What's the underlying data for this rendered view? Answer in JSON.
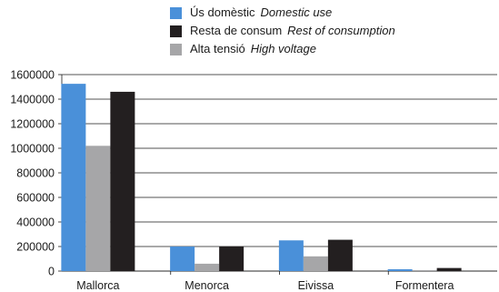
{
  "chart_data": {
    "type": "bar",
    "categories": [
      "Mallorca",
      "Menorca",
      "Eivissa",
      "Formentera"
    ],
    "series": [
      {
        "name": "Ús domèstic",
        "name_en": "Domestic use",
        "color": "#4a90d9",
        "values": [
          1525000,
          200000,
          250000,
          15000
        ]
      },
      {
        "name": "Alta tensió",
        "name_en": "High voltage",
        "color": "#a6a6a8",
        "values": [
          1020000,
          60000,
          120000,
          8000
        ]
      },
      {
        "name": "Resta de consum",
        "name_en": "Rest of consumption",
        "color": "#231f20",
        "values": [
          1460000,
          200000,
          255000,
          25000
        ]
      }
    ],
    "legend_order": [
      0,
      2,
      1
    ],
    "legend_position": "top",
    "ylim": [
      0,
      1600000
    ],
    "yticks": [
      "0",
      "200000",
      "400000",
      "600000",
      "800000",
      "1000000",
      "1200000",
      "1400000",
      "1600000"
    ],
    "grid": "horizontal",
    "title": "",
    "xlabel": "",
    "ylabel": ""
  }
}
